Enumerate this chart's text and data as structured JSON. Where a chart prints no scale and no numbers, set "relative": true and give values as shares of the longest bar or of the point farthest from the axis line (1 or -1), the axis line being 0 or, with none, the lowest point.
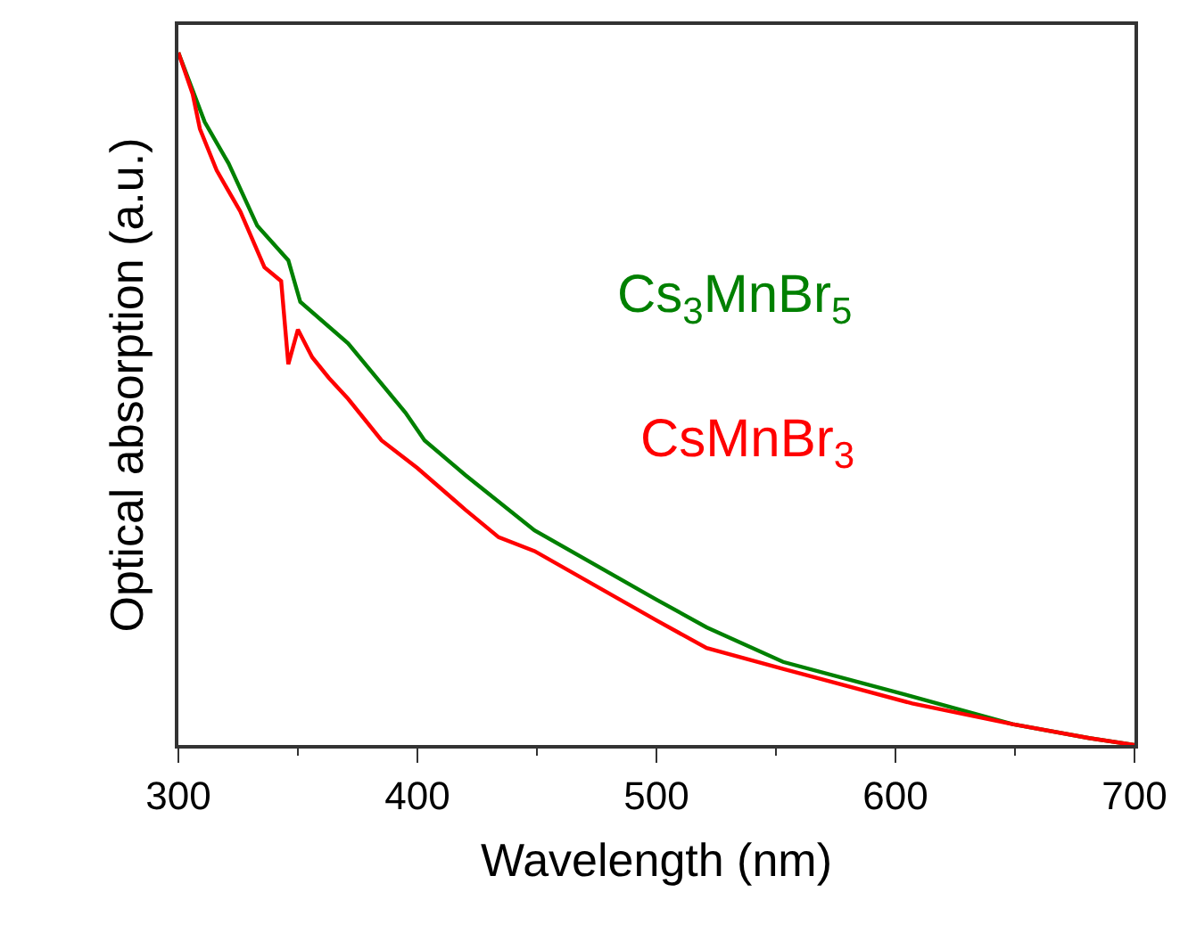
{
  "chart_data": {
    "type": "line",
    "relative": true,
    "xlabel": "Wavelength (nm)",
    "ylabel": "Optical absorption (a.u.)",
    "xlim": [
      300,
      700
    ],
    "xticks": [
      300,
      400,
      500,
      600,
      700
    ],
    "legend": false,
    "marker": "none",
    "line_style": "solid",
    "series": [
      {
        "name": "Cs$_{3}$MnBr$_{5}$",
        "color": "#008000",
        "x": [
          300,
          311,
          321,
          333,
          346,
          351,
          371,
          395,
          403,
          420,
          449,
          500,
          521,
          553,
          607,
          649,
          681,
          700
        ],
        "values": [
          1.0,
          0.9,
          0.84,
          0.75,
          0.7,
          0.64,
          0.58,
          0.48,
          0.44,
          0.39,
          0.31,
          0.21,
          0.17,
          0.12,
          0.07,
          0.03,
          0.01,
          0.0
        ]
      },
      {
        "name": "CsMnBr$_{3}$",
        "color": "#ff0000",
        "x": [
          300,
          306,
          309,
          316,
          326,
          336,
          343,
          346,
          350,
          356,
          363,
          371,
          385,
          400,
          420,
          434,
          449,
          500,
          521,
          553,
          607,
          649,
          681,
          700
        ],
        "values": [
          1.0,
          0.94,
          0.89,
          0.83,
          0.77,
          0.69,
          0.67,
          0.55,
          0.6,
          0.56,
          0.53,
          0.5,
          0.44,
          0.4,
          0.34,
          0.3,
          0.28,
          0.18,
          0.14,
          0.11,
          0.06,
          0.03,
          0.01,
          0.0
        ]
      }
    ]
  }
}
